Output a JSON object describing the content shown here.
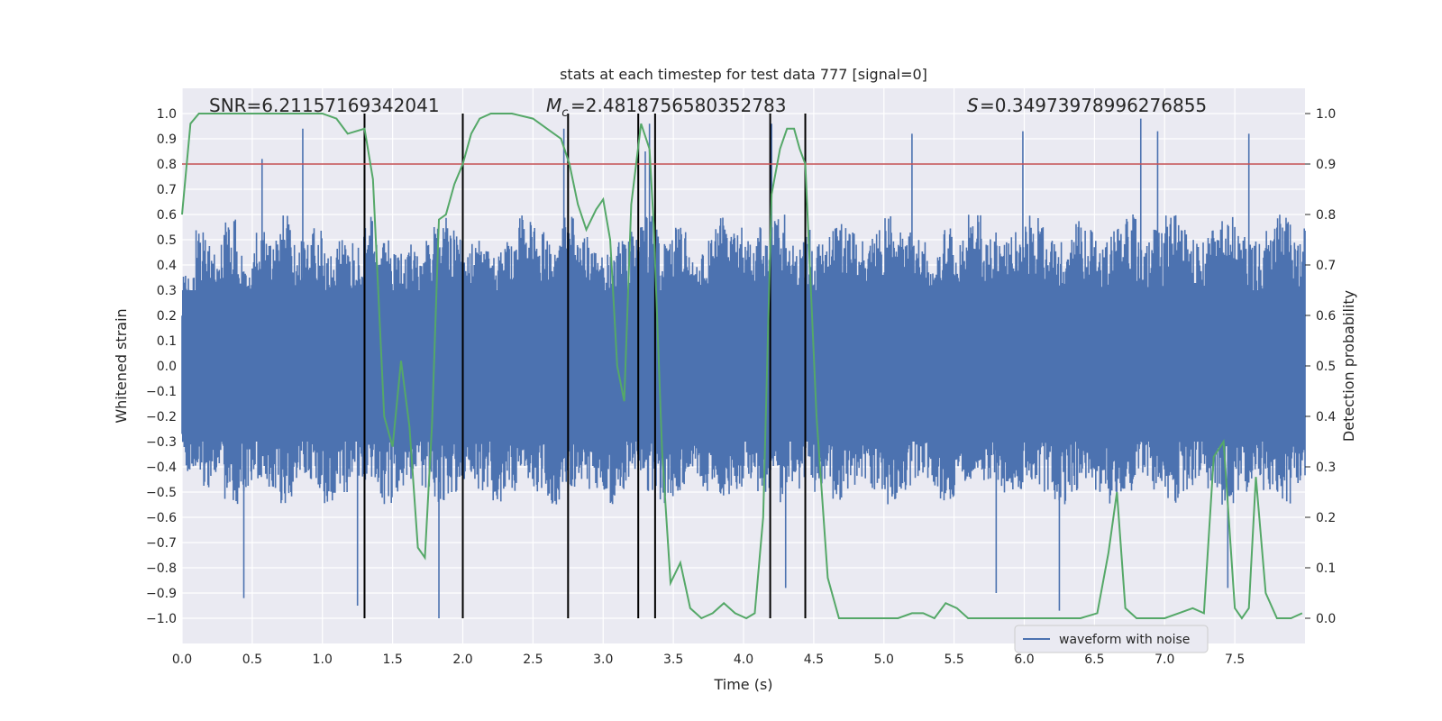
{
  "chart_data": {
    "type": "line",
    "title": "stats at each timestep for test data 777 [signal=0]",
    "xlabel": "Time (s)",
    "ylabel_left": "Whitened strain",
    "ylabel_right": "Detection probability",
    "xlim": [
      0.0,
      8.0
    ],
    "ylim_left": [
      -1.1,
      1.1
    ],
    "ylim_right": [
      -0.05,
      1.05
    ],
    "x_ticks": [
      0.0,
      0.5,
      1.0,
      1.5,
      2.0,
      2.5,
      3.0,
      3.5,
      4.0,
      4.5,
      5.0,
      5.5,
      6.0,
      6.5,
      7.0,
      7.5
    ],
    "x_tick_labels": [
      "0.0",
      "0.5",
      "1.0",
      "1.5",
      "2.0",
      "2.5",
      "3.0",
      "3.5",
      "4.0",
      "4.5",
      "5.0",
      "5.5",
      "6.0",
      "6.5",
      "7.0",
      "7.5"
    ],
    "y_left_ticks": [
      1.0,
      0.9,
      0.8,
      0.7,
      0.6,
      0.5,
      0.4,
      0.3,
      0.2,
      0.1,
      0.0,
      -0.1,
      -0.2,
      -0.3,
      -0.4,
      -0.5,
      -0.6,
      -0.7,
      -0.8,
      -0.9,
      -1.0
    ],
    "y_left_tick_labels": [
      "1.0",
      "0.9",
      "0.8",
      "0.7",
      "0.6",
      "0.5",
      "0.4",
      "0.3",
      "0.2",
      "0.1",
      "0.0",
      "−0.1",
      "−0.2",
      "−0.3",
      "−0.4",
      "−0.5",
      "−0.6",
      "−0.7",
      "−0.8",
      "−0.9",
      "−1.0"
    ],
    "y_right_ticks": [
      1.0,
      0.9,
      0.8,
      0.7,
      0.6,
      0.5,
      0.4,
      0.3,
      0.2,
      0.1,
      0.0
    ],
    "y_right_tick_labels": [
      "1.0",
      "0.9",
      "0.8",
      "0.7",
      "0.6",
      "0.5",
      "0.4",
      "0.3",
      "0.2",
      "0.1",
      "0.0"
    ],
    "annotations": {
      "snr": "SNR=6.21157169342041",
      "mc": "=2.4818756580352783",
      "s": "=0.34973978996276855"
    },
    "threshold_line": {
      "value": 0.9,
      "axis": "right",
      "color": "#c44e52"
    },
    "vertical_lines": [
      1.3,
      2.0,
      2.75,
      3.25,
      3.37,
      4.19,
      4.44
    ],
    "series": [
      {
        "name": "waveform with noise",
        "axis": "left",
        "color": "#4c72b0",
        "envelope_upper": [
          0.36,
          0.55,
          0.5,
          0.6,
          0.45,
          0.55,
          0.5,
          0.6,
          0.5,
          0.55,
          0.45,
          0.5,
          0.55,
          0.6,
          0.5,
          0.45,
          0.5,
          0.55,
          0.6,
          0.55,
          0.5,
          0.55,
          0.45,
          0.5,
          0.6,
          0.55,
          0.5,
          0.6,
          0.55,
          0.5,
          0.45,
          0.5,
          0.55,
          0.6,
          0.5,
          0.55,
          0.45,
          0.5,
          0.6,
          0.55,
          0.5,
          0.55,
          0.6,
          0.5,
          0.55,
          0.5,
          0.6,
          0.55,
          0.5,
          0.55,
          0.6,
          0.55,
          0.5,
          0.45,
          0.55,
          0.5,
          0.6,
          0.55,
          0.5,
          0.55,
          0.6,
          0.55,
          0.5,
          0.6,
          0.55,
          0.5,
          0.55,
          0.6,
          0.5,
          0.55,
          0.6,
          0.55,
          0.5,
          0.55,
          0.6,
          0.55,
          0.5,
          0.55,
          0.6,
          0.55
        ],
        "envelope_lower": [
          -0.42,
          -0.5,
          -0.45,
          -0.55,
          -0.5,
          -0.45,
          -0.5,
          -0.55,
          -0.45,
          -0.5,
          -0.55,
          -0.5,
          -0.45,
          -0.5,
          -0.55,
          -0.5,
          -0.45,
          -0.5,
          -0.55,
          -0.5,
          -0.45,
          -0.5,
          -0.55,
          -0.5,
          -0.45,
          -0.5,
          -0.55,
          -0.5,
          -0.45,
          -0.5,
          -0.55,
          -0.5,
          -0.45,
          -0.5,
          -0.55,
          -0.5,
          -0.45,
          -0.5,
          -0.55,
          -0.5,
          -0.45,
          -0.5,
          -0.55,
          -0.5,
          -0.45,
          -0.5,
          -0.55,
          -0.5,
          -0.45,
          -0.5,
          -0.55,
          -0.5,
          -0.45,
          -0.5,
          -0.55,
          -0.5,
          -0.45,
          -0.5,
          -0.55,
          -0.5,
          -0.45,
          -0.5,
          -0.55,
          -0.5,
          -0.45,
          -0.5,
          -0.55,
          -0.5,
          -0.45,
          -0.5,
          -0.55,
          -0.5,
          -0.45,
          -0.5,
          -0.55,
          -0.5,
          -0.45,
          -0.5,
          -0.55,
          -0.5
        ],
        "spikes": [
          {
            "x": 0.86,
            "y": 0.94
          },
          {
            "x": 0.57,
            "y": 0.82
          },
          {
            "x": 1.3,
            "y": 0.98
          },
          {
            "x": 1.83,
            "y": -1.0
          },
          {
            "x": 0.44,
            "y": -0.92
          },
          {
            "x": 2.72,
            "y": 0.94
          },
          {
            "x": 2.75,
            "y": -0.82
          },
          {
            "x": 3.33,
            "y": 0.96
          },
          {
            "x": 3.3,
            "y": 0.85
          },
          {
            "x": 4.2,
            "y": 0.96
          },
          {
            "x": 5.2,
            "y": 0.92
          },
          {
            "x": 5.99,
            "y": 0.93
          },
          {
            "x": 6.83,
            "y": 0.98
          },
          {
            "x": 6.25,
            "y": -0.97
          },
          {
            "x": 6.95,
            "y": 0.93
          },
          {
            "x": 7.6,
            "y": 0.92
          },
          {
            "x": 1.25,
            "y": -0.95
          },
          {
            "x": 4.3,
            "y": -0.88
          },
          {
            "x": 5.8,
            "y": -0.9
          },
          {
            "x": 7.45,
            "y": -0.88
          }
        ]
      },
      {
        "name": "detection probability",
        "axis": "right",
        "color": "#55a868",
        "x": [
          0.0,
          0.06,
          0.12,
          0.2,
          0.4,
          0.6,
          0.8,
          1.0,
          1.1,
          1.18,
          1.3,
          1.36,
          1.44,
          1.5,
          1.56,
          1.62,
          1.68,
          1.73,
          1.78,
          1.83,
          1.88,
          1.94,
          2.0,
          2.06,
          2.12,
          2.2,
          2.35,
          2.5,
          2.6,
          2.7,
          2.76,
          2.82,
          2.88,
          2.95,
          3.0,
          3.05,
          3.1,
          3.15,
          3.2,
          3.27,
          3.33,
          3.36,
          3.42,
          3.48,
          3.55,
          3.62,
          3.7,
          3.78,
          3.86,
          3.94,
          4.02,
          4.08,
          4.14,
          4.2,
          4.26,
          4.31,
          4.36,
          4.4,
          4.44,
          4.52,
          4.6,
          4.68,
          4.8,
          5.0,
          5.1,
          5.2,
          5.28,
          5.36,
          5.44,
          5.52,
          5.6,
          5.8,
          6.0,
          6.2,
          6.4,
          6.52,
          6.6,
          6.66,
          6.72,
          6.8,
          7.0,
          7.1,
          7.2,
          7.28,
          7.35,
          7.42,
          7.5,
          7.55,
          7.6,
          7.65,
          7.72,
          7.8,
          7.9,
          7.98
        ],
        "y": [
          0.8,
          0.98,
          1.0,
          1.0,
          1.0,
          1.0,
          1.0,
          1.0,
          0.99,
          0.96,
          0.97,
          0.87,
          0.4,
          0.34,
          0.51,
          0.38,
          0.14,
          0.12,
          0.38,
          0.79,
          0.8,
          0.86,
          0.9,
          0.96,
          0.99,
          1.0,
          1.0,
          0.99,
          0.97,
          0.95,
          0.9,
          0.82,
          0.77,
          0.81,
          0.83,
          0.75,
          0.5,
          0.43,
          0.82,
          0.98,
          0.93,
          0.78,
          0.33,
          0.07,
          0.11,
          0.02,
          0.0,
          0.01,
          0.03,
          0.01,
          0.0,
          0.01,
          0.2,
          0.84,
          0.93,
          0.97,
          0.97,
          0.93,
          0.9,
          0.4,
          0.08,
          0.0,
          0.0,
          0.0,
          0.0,
          0.01,
          0.01,
          0.0,
          0.03,
          0.02,
          0.0,
          0.0,
          0.0,
          0.0,
          0.0,
          0.01,
          0.13,
          0.25,
          0.02,
          0.0,
          0.0,
          0.01,
          0.02,
          0.01,
          0.32,
          0.35,
          0.02,
          0.0,
          0.02,
          0.28,
          0.05,
          0.0,
          0.0,
          0.01
        ]
      }
    ],
    "legend": {
      "label": "waveform with noise",
      "placement": "lower-right"
    }
  }
}
